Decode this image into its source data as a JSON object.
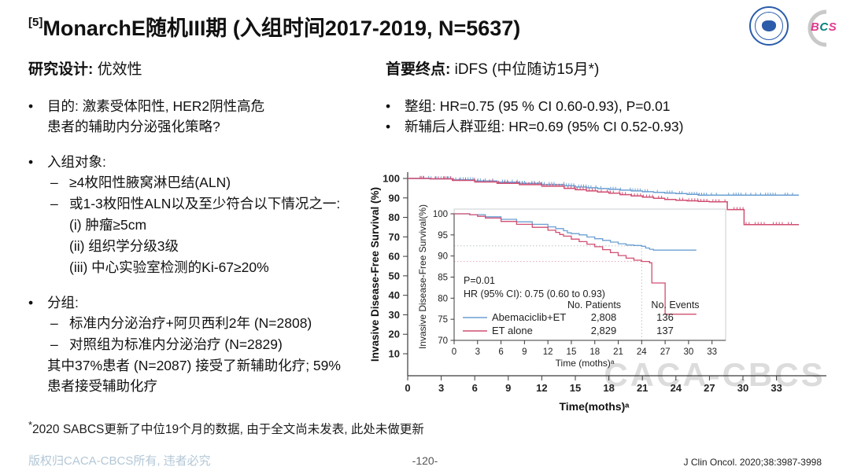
{
  "title": {
    "sup": "[5]",
    "text": "MonarchE随机III期 (入组时间2017-2019, N=5637)"
  },
  "logos": {
    "bcs_letters": [
      "B",
      "C",
      "S"
    ],
    "bcs_colors": [
      "#e23a8e",
      "#00837f",
      "#e23a8e"
    ]
  },
  "left": {
    "heading_bold": "研究设计:",
    "heading_normal": " 优效性",
    "bullet_glyph": "•",
    "dash_glyph": "–",
    "objective_line1": "目的: 激素受体阳性, HER2阴性高危",
    "objective_line2": "患者的辅助内分泌强化策略?",
    "enroll_head": "入组对象:",
    "enroll_dash1": "≥4枚阳性腋窝淋巴结(ALN)",
    "enroll_dash2": "或1-3枚阳性ALN以及至少符合以下情况之一:",
    "enroll_i": "(i) 肿瘤≥5cm",
    "enroll_ii": "(ii) 组织学分级3级",
    "enroll_iii": "(iii) 中心实验室检测的Ki-67≥20%",
    "group_head": "分组:",
    "group_dash1": "标准内分泌治疗+阿贝西利2年 (N=2808)",
    "group_dash2": "对照组为标准内分泌治疗 (N=2829)",
    "group_note1": "其中37%患者 (N=2087) 接受了新辅助化疗; 59%",
    "group_note2": "患者接受辅助化疗",
    "footnote_mark": "*",
    "footnote": "2020 SABCS更新了中位19个月的数据, 由于全文尚未发表, 此处未做更新"
  },
  "right": {
    "heading_bold": "首要终点:",
    "heading_normal": " iDFS (中位随访15月*)",
    "bullet1": "整组: HR=0.75 (95 % CI 0.60-0.93), P=0.01",
    "bullet2": "新辅后人群亚组: HR=0.69 (95% CI 0.52-0.93)"
  },
  "footer": {
    "left": "版权归CACA-CBCS所有, 违者必究",
    "center": "-120-",
    "right": "J Clin Oncol. 2020;38:3987-3998"
  },
  "chart_data": {
    "type": "line",
    "subtype": "kaplan-meier-with-inset",
    "watermark": "CACA-CBCS",
    "has_censor_marks": true,
    "colors": {
      "abemaciclib": "#6b9fd2",
      "et_alone": "#d14f72",
      "ref_gray": "#b9c2c6",
      "ref_pink": "#e7a6b8",
      "axis": "#3a3a3a",
      "text": "#222222",
      "watermark": "#dcdcdc",
      "inset_border": "#c9ced2"
    },
    "outer": {
      "ylabel": "Invasive Disease-Free Survival (%)",
      "xlabel": "Time(moths)ᵃ",
      "ylim": [
        10,
        100
      ],
      "yticks": [
        100,
        90,
        80,
        70,
        60,
        50,
        40,
        30,
        20,
        10
      ],
      "xticks": [
        0,
        3,
        6,
        9,
        12,
        15,
        18,
        21,
        24,
        27,
        30,
        33
      ]
    },
    "inset": {
      "ylabel": "Invasive Disease-Free Survival(%)",
      "xlabel": "Time (moths)ᵃ",
      "ylim": [
        70,
        100
      ],
      "yticks": [
        100,
        95,
        90,
        85,
        80,
        75,
        70
      ],
      "xticks": [
        0,
        3,
        6,
        9,
        12,
        15,
        18,
        21,
        24,
        27,
        30,
        33
      ],
      "annotation_p": "P=0.01",
      "annotation_hr": "HR (95% CI): 0.75 (0.60 to 0.93)",
      "ref_lines": {
        "abemaciclib_y": 92.4,
        "et_alone_y": 88.7,
        "vline_x": 24
      }
    },
    "legend": {
      "col_patients": "No. Patients",
      "col_events": "No. Events",
      "rows": [
        {
          "name": "Abemaciclib+ET",
          "patients": "2,808",
          "events": "136"
        },
        {
          "name": "ET alone",
          "patients": "2,829",
          "events": "137"
        }
      ]
    },
    "series": [
      {
        "name": "Abemaciclib+ET",
        "color": "#6b9fd2",
        "points": [
          [
            0,
            100
          ],
          [
            2,
            99.8
          ],
          [
            4,
            99.3
          ],
          [
            6,
            98.7
          ],
          [
            8,
            98.1
          ],
          [
            10,
            97.5
          ],
          [
            12,
            96.9
          ],
          [
            13,
            96.5
          ],
          [
            14,
            96
          ],
          [
            14.5,
            95.5
          ],
          [
            15,
            95.3
          ],
          [
            16,
            95
          ],
          [
            17,
            94.5
          ],
          [
            18,
            94.1
          ],
          [
            19,
            93.7
          ],
          [
            20,
            93.3
          ],
          [
            21,
            92.9
          ],
          [
            22,
            92.6
          ],
          [
            23,
            92.5
          ],
          [
            24,
            92.3
          ],
          [
            24.5,
            91.9
          ],
          [
            25,
            91.6
          ],
          [
            25.5,
            91.4
          ],
          [
            31,
            91.4
          ]
        ],
        "outer_points": [
          [
            0,
            100
          ],
          [
            2,
            99.8
          ],
          [
            4,
            99.3
          ],
          [
            6,
            98.7
          ],
          [
            8,
            98.1
          ],
          [
            10,
            97.5
          ],
          [
            12,
            96.9
          ],
          [
            14,
            96.2
          ],
          [
            15,
            95.6
          ],
          [
            16,
            95.2
          ],
          [
            17,
            94.8
          ],
          [
            18,
            94.4
          ],
          [
            19,
            94
          ],
          [
            20,
            93.6
          ],
          [
            21,
            93.2
          ],
          [
            22,
            92.8
          ],
          [
            23,
            92.5
          ],
          [
            24,
            92.2
          ],
          [
            25,
            91.8
          ],
          [
            26,
            91.4
          ],
          [
            35,
            91.4
          ]
        ]
      },
      {
        "name": "ET alone",
        "color": "#d14f72",
        "points": [
          [
            0,
            100
          ],
          [
            2,
            99.8
          ],
          [
            3,
            99.4
          ],
          [
            4,
            99
          ],
          [
            6,
            98.2
          ],
          [
            8,
            97.5
          ],
          [
            10,
            96.8
          ],
          [
            12,
            96.1
          ],
          [
            13,
            95.6
          ],
          [
            13.5,
            95.1
          ],
          [
            14,
            94.7
          ],
          [
            15,
            94
          ],
          [
            16,
            93.4
          ],
          [
            17,
            92.8
          ],
          [
            18,
            92.2
          ],
          [
            19,
            91.5
          ],
          [
            20,
            90.8
          ],
          [
            21,
            90.1
          ],
          [
            22,
            89.5
          ],
          [
            23,
            89
          ],
          [
            24,
            88.7
          ],
          [
            25,
            88.4
          ],
          [
            25.3,
            83.6
          ],
          [
            26.8,
            83.6
          ],
          [
            27,
            76.2
          ],
          [
            31,
            76.2
          ]
        ],
        "outer_points": [
          [
            0,
            100
          ],
          [
            2,
            99.8
          ],
          [
            4,
            99
          ],
          [
            6,
            98.2
          ],
          [
            8,
            97.5
          ],
          [
            10,
            96.8
          ],
          [
            12,
            96
          ],
          [
            14,
            94.9
          ],
          [
            15,
            94.2
          ],
          [
            16,
            93.6
          ],
          [
            17,
            93
          ],
          [
            18,
            92.4
          ],
          [
            19,
            91.7
          ],
          [
            20,
            91
          ],
          [
            21,
            90.4
          ],
          [
            22,
            89.8
          ],
          [
            23,
            89.2
          ],
          [
            24,
            88.8
          ],
          [
            25,
            88.5
          ],
          [
            26,
            88.2
          ],
          [
            27,
            88
          ],
          [
            28.6,
            84
          ],
          [
            30.1,
            76.3
          ],
          [
            35,
            76.3
          ]
        ]
      }
    ]
  }
}
